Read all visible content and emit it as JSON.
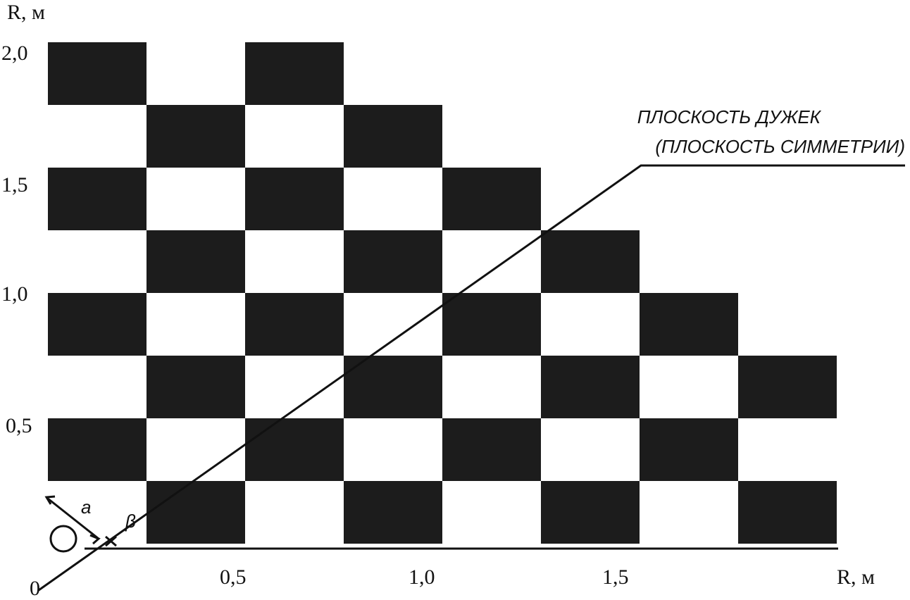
{
  "y_axis": {
    "label": "R, м",
    "ticks": [
      "2,0",
      "1,5",
      "1,0",
      "0,5"
    ]
  },
  "x_axis": {
    "label": "R, м",
    "origin": "0",
    "ticks": [
      "0,5",
      "1,0",
      "1,5"
    ]
  },
  "annotation": {
    "line1": "ПЛОСКОСТЬ ДУЖЕК",
    "line2": "(ПЛОСКОСТЬ СИММЕТРИИ)"
  },
  "angle_labels": {
    "a": "a",
    "beta": "β"
  }
}
